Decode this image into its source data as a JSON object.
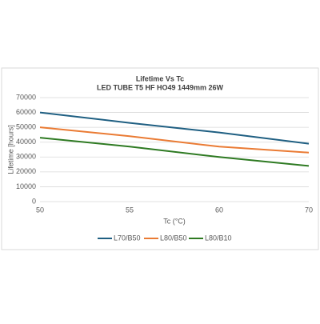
{
  "chart_data": {
    "type": "line",
    "title": "Lifetime Vs Tc",
    "subtitle": "LED TUBE T5 HF HO49 1449mm 26W",
    "x_label": "Tc (°C)",
    "y_label": "Lifetime [hours]",
    "categories": [
      50,
      55,
      60,
      70
    ],
    "series": [
      {
        "name": "L70/B50",
        "color": "#1f5f82",
        "values": [
          60000,
          53000,
          46500,
          39000
        ]
      },
      {
        "name": "L80/B50",
        "color": "#ea7b34",
        "values": [
          50000,
          44000,
          37000,
          33000
        ]
      },
      {
        "name": "L80/B10",
        "color": "#2e7a22",
        "values": [
          43000,
          37000,
          30000,
          24000
        ]
      }
    ],
    "ylim": [
      0,
      70000
    ],
    "yticks": [
      0,
      10000,
      20000,
      30000,
      40000,
      50000,
      60000,
      70000
    ],
    "grid": true,
    "legend": "bottom"
  }
}
